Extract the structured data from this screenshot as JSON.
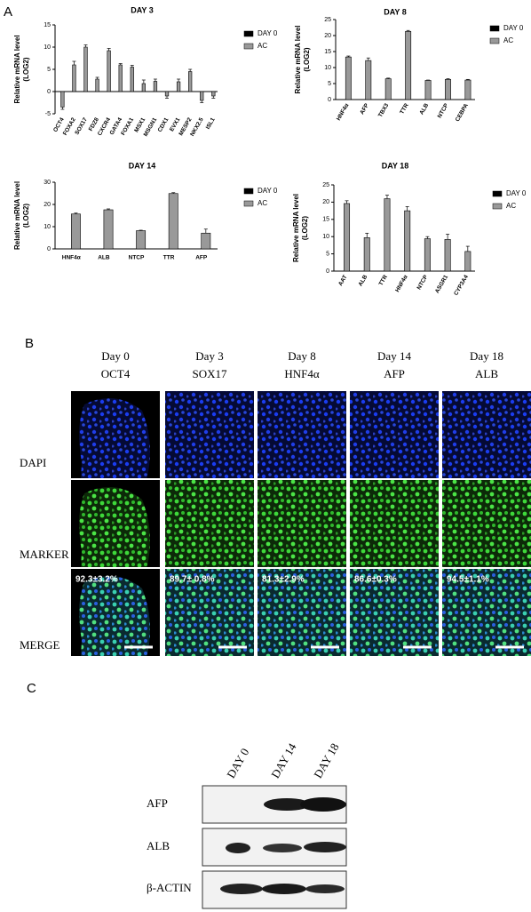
{
  "panel_labels": [
    "A",
    "B",
    "C"
  ],
  "chart_data": [
    {
      "type": "bar",
      "title": "DAY 3",
      "y_label": [
        "Relative mRNA level",
        "(LOG2)"
      ],
      "categories": [
        "OCT4",
        "FOXA2",
        "SOX17",
        "FDZ8",
        "CXCR4",
        "GATA4",
        "FOXA1",
        "MSX1",
        "MSGN1",
        "CDX1",
        "EVX1",
        "MESP2",
        "NKX2.5",
        "ISL1"
      ],
      "series": [
        {
          "name": "DAY 0",
          "color": "#000000",
          "values": [
            0,
            0,
            0,
            0,
            0,
            0,
            0,
            0,
            0,
            0,
            0,
            0,
            0,
            0
          ]
        },
        {
          "name": "AC",
          "color": "#999999",
          "values": [
            -3.5,
            6,
            10,
            2.8,
            9.2,
            6,
            5.5,
            1.8,
            2.3,
            -1,
            2.2,
            4.5,
            -2,
            -1
          ],
          "errors": [
            0.5,
            0.8,
            0.5,
            0.4,
            0.5,
            0.3,
            0.4,
            0.8,
            0.5,
            0.5,
            0.6,
            0.5,
            0.5,
            0.5
          ]
        }
      ],
      "ylim": [
        -5,
        15
      ],
      "yticks": [
        -5,
        0,
        5,
        10,
        15
      ],
      "legend": "right"
    },
    {
      "type": "bar",
      "title": "DAY 8",
      "y_label": [
        "Relative mRNA level",
        "(LOG2)"
      ],
      "categories": [
        "HNF4α",
        "AFP",
        "TBX3",
        "TTR",
        "ALB",
        "NTCP",
        "CEBPA"
      ],
      "series": [
        {
          "name": "DAY 0",
          "color": "#000000",
          "values": [
            0,
            0,
            0,
            0,
            0,
            0,
            0
          ]
        },
        {
          "name": "AC",
          "color": "#999999",
          "values": [
            13.3,
            12.2,
            6.5,
            21.3,
            6,
            6.3,
            6.1
          ],
          "errors": [
            0.3,
            0.8,
            0.2,
            0.3,
            0.1,
            0.2,
            0.2
          ]
        }
      ],
      "ylim": [
        0,
        25
      ],
      "yticks": [
        0,
        5,
        10,
        15,
        20,
        25
      ],
      "legend": "right"
    },
    {
      "type": "bar",
      "title": "DAY 14",
      "y_label": [
        "Relative mRNA level",
        "(LOG2)"
      ],
      "categories": [
        "HNF4α",
        "ALB",
        "NTCP",
        "TTR",
        "AFP"
      ],
      "series": [
        {
          "name": "DAY 0",
          "color": "#000000",
          "values": [
            0,
            0,
            0,
            0,
            0
          ]
        },
        {
          "name": "AC",
          "color": "#999999",
          "values": [
            15.7,
            17.6,
            8.2,
            24.9,
            7.1
          ],
          "errors": [
            0.4,
            0.4,
            0.2,
            0.4,
            1.8
          ]
        }
      ],
      "ylim": [
        0,
        30
      ],
      "yticks": [
        0,
        10,
        20,
        30
      ],
      "legend": "right"
    },
    {
      "type": "bar",
      "title": "DAY 18",
      "y_label": [
        "Relative mRNA level",
        "(LOG2)"
      ],
      "categories": [
        "AAT",
        "ALB",
        "TTR",
        "HNF4α",
        "NTCP",
        "ASGR1",
        "CYP3A4"
      ],
      "series": [
        {
          "name": "DAY 0",
          "color": "#000000",
          "values": [
            0,
            0,
            0,
            0,
            0,
            0,
            0
          ]
        },
        {
          "name": "AC",
          "color": "#999999",
          "values": [
            19.6,
            9.7,
            21,
            17.5,
            9.4,
            9.2,
            5.7
          ],
          "errors": [
            0.8,
            1.3,
            1,
            1.2,
            0.6,
            1.5,
            1.5
          ]
        }
      ],
      "ylim": [
        0,
        25
      ],
      "yticks": [
        0,
        5,
        10,
        15,
        20,
        25
      ],
      "legend": "right"
    }
  ],
  "immunofluorescence": {
    "columns": [
      {
        "day": "Day 0",
        "marker": "OCT4"
      },
      {
        "day": "Day 3",
        "marker": "SOX17"
      },
      {
        "day": "Day 8",
        "marker": "HNF4α"
      },
      {
        "day": "Day 14",
        "marker": "AFP"
      },
      {
        "day": "Day 18",
        "marker": "ALB"
      }
    ],
    "rows": [
      "DAPI",
      "MARKER",
      "MERGE"
    ],
    "percentages": [
      "92.3±3.2%",
      "89.7± 0.8%",
      "81.3±2.9%",
      "86.6±0.3%",
      "94.5±1.1%"
    ]
  },
  "western_blot": {
    "lanes": [
      "DAY 0",
      "DAY 14",
      "DAY 18"
    ],
    "rows": [
      "AFP",
      "ALB",
      "β-ACTIN"
    ]
  }
}
